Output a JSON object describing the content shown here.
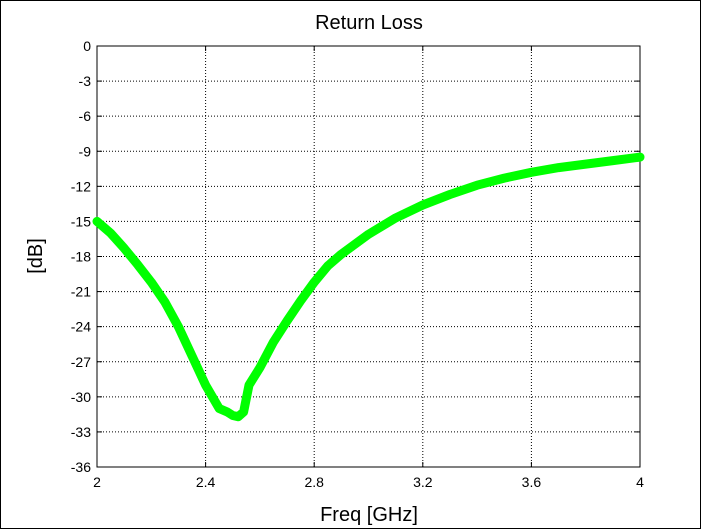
{
  "chart_data": {
    "type": "line",
    "title": "Return Loss",
    "xlabel": "Freq [GHz]",
    "ylabel": "[dB]",
    "xlim": [
      2,
      4
    ],
    "ylim": [
      -36,
      0
    ],
    "xticks": [
      2,
      2.4,
      2.8,
      3.2,
      3.6,
      4
    ],
    "xtick_labels": [
      "2",
      "2.4",
      "2.8",
      "3.2",
      "3.6",
      "4"
    ],
    "yticks": [
      0,
      -3,
      -6,
      -9,
      -12,
      -15,
      -18,
      -21,
      -24,
      -27,
      -30,
      -33,
      -36
    ],
    "ytick_labels": [
      "0",
      "-3",
      "-6",
      "-9",
      "-12",
      "-15",
      "-18",
      "-21",
      "-24",
      "-27",
      "-30",
      "-33",
      "-36"
    ],
    "grid": true,
    "series": [
      {
        "color": "#00ff00",
        "x": [
          2.0,
          2.05,
          2.1,
          2.15,
          2.2,
          2.25,
          2.3,
          2.35,
          2.4,
          2.45,
          2.48,
          2.5,
          2.52,
          2.54,
          2.56,
          2.6,
          2.65,
          2.7,
          2.75,
          2.8,
          2.85,
          2.9,
          3.0,
          3.1,
          3.2,
          3.3,
          3.4,
          3.5,
          3.6,
          3.7,
          3.8,
          3.9,
          4.0
        ],
        "y": [
          -15.0,
          -16.0,
          -17.3,
          -18.7,
          -20.2,
          -21.9,
          -24.0,
          -26.5,
          -29.0,
          -31.0,
          -31.3,
          -31.6,
          -31.7,
          -31.3,
          -29.0,
          -27.5,
          -25.3,
          -23.5,
          -21.8,
          -20.2,
          -18.8,
          -17.8,
          -16.1,
          -14.7,
          -13.6,
          -12.7,
          -11.9,
          -11.3,
          -10.8,
          -10.4,
          -10.1,
          -9.8,
          -9.5
        ]
      }
    ]
  }
}
